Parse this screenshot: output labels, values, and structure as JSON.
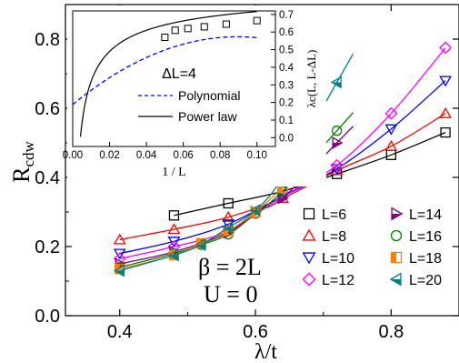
{
  "chart_data": [
    {
      "type": "line",
      "xlabel": "λ/t",
      "ylabel_main": "R",
      "ylabel_sub": "cdw",
      "xlim": [
        0.32,
        0.9
      ],
      "ylim": [
        0.0,
        0.9
      ],
      "xticks": [
        "0.4",
        "0.6",
        "0.8"
      ],
      "xtick_values": [
        0.4,
        0.6,
        0.8
      ],
      "yticks": [
        "0.0",
        "0.2",
        "0.4",
        "0.6",
        "0.8"
      ],
      "ytick_values": [
        0.0,
        0.2,
        0.4,
        0.6,
        0.8
      ],
      "annotation_beta": "β = 2L",
      "annotation_u": "U = 0",
      "legend_placement": "bottom-right",
      "series": [
        {
          "name": "L=6",
          "color": "#000000",
          "marker": "square",
          "fill": false,
          "x": [
            0.48,
            0.56,
            0.64,
            0.72,
            0.8,
            0.88
          ],
          "y": [
            0.29,
            0.325,
            0.36,
            0.41,
            0.465,
            0.53
          ]
        },
        {
          "name": "L=8",
          "color": "#ff0000",
          "marker": "triangle-up",
          "fill": false,
          "x": [
            0.4,
            0.48,
            0.56,
            0.64,
            0.72,
            0.8,
            0.88
          ],
          "y": [
            0.22,
            0.25,
            0.285,
            0.34,
            0.42,
            0.49,
            0.585
          ]
        },
        {
          "name": "L=10",
          "color": "#0000ff",
          "marker": "triangle-down",
          "fill": false,
          "x": [
            0.4,
            0.48,
            0.56,
            0.64,
            0.72,
            0.8,
            0.88
          ],
          "y": [
            0.18,
            0.215,
            0.265,
            0.345,
            0.425,
            0.54,
            0.68
          ]
        },
        {
          "name": "L=12",
          "color": "#ff00ff",
          "marker": "diamond",
          "fill": false,
          "x": [
            0.4,
            0.48,
            0.56,
            0.64,
            0.72,
            0.8,
            0.88
          ],
          "y": [
            0.165,
            0.2,
            0.245,
            0.345,
            0.435,
            0.585,
            0.775
          ]
        },
        {
          "name": "L=14",
          "color": "#800080",
          "marker": "triangle-right",
          "fill": true,
          "x": [
            0.4,
            0.48,
            0.56,
            0.6,
            0.64,
            0.72
          ],
          "y": [
            0.15,
            0.185,
            0.24,
            0.3,
            0.34,
            0.5
          ]
        },
        {
          "name": "L=16",
          "color": "#008000",
          "marker": "circle",
          "fill": false,
          "x": [
            0.4,
            0.48,
            0.52,
            0.56,
            0.6,
            0.64,
            0.72
          ],
          "y": [
            0.14,
            0.18,
            0.205,
            0.235,
            0.295,
            0.36,
            0.535
          ]
        },
        {
          "name": "L=18",
          "color": "#ff8000",
          "marker": "half-square",
          "fill": true,
          "x": [
            0.4,
            0.48,
            0.52,
            0.56,
            0.6,
            0.64
          ],
          "y": [
            0.135,
            0.175,
            0.21,
            0.245,
            0.3,
            0.37
          ]
        },
        {
          "name": "L=20",
          "color": "#008080",
          "marker": "triangle-left",
          "fill": true,
          "x": [
            0.4,
            0.48,
            0.52,
            0.56,
            0.6,
            0.64,
            0.72
          ],
          "y": [
            0.13,
            0.175,
            0.205,
            0.255,
            0.305,
            0.4,
            0.675
          ]
        }
      ]
    },
    {
      "type": "scatter",
      "inset": true,
      "xlabel": "1 / L",
      "ylabel": "λc(L, L-ΔL)",
      "xlim": [
        0.0,
        0.11
      ],
      "ylim": [
        -0.05,
        0.72
      ],
      "xticks": [
        "0.00",
        "0.02",
        "0.04",
        "0.06",
        "0.08",
        "0.10"
      ],
      "xtick_values": [
        0.0,
        0.02,
        0.04,
        0.06,
        0.08,
        0.1
      ],
      "yticks": [
        "0.0",
        "0.1",
        "0.2",
        "0.3",
        "0.4",
        "0.5",
        "0.6",
        "0.7"
      ],
      "ytick_values": [
        0.0,
        0.1,
        0.2,
        0.3,
        0.4,
        0.5,
        0.6,
        0.7
      ],
      "annotation": "ΔL=4",
      "points": {
        "x": [
          0.05,
          0.0556,
          0.0625,
          0.0714,
          0.0833,
          0.1
        ],
        "y": [
          0.57,
          0.61,
          0.62,
          0.63,
          0.645,
          0.665
        ]
      },
      "fits": [
        {
          "name": "Polynomial",
          "color": "#0000ff",
          "style": "dashed"
        },
        {
          "name": "Power law",
          "color": "#000000",
          "style": "solid"
        }
      ]
    }
  ]
}
